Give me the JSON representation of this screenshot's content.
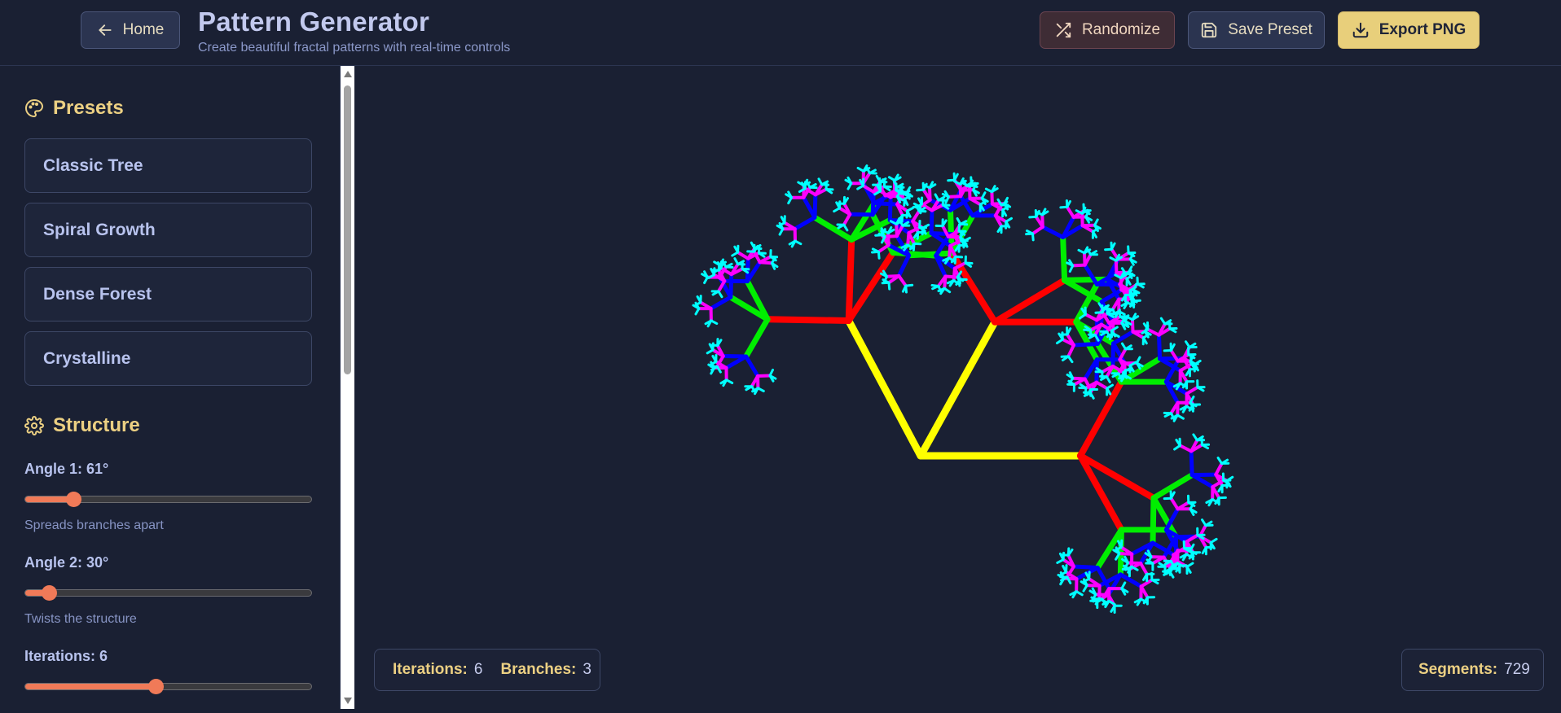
{
  "header": {
    "home_label": "Home",
    "title": "Pattern Generator",
    "subtitle": "Create beautiful fractal patterns with real-time controls",
    "randomize_label": "Randomize",
    "save_label": "Save Preset",
    "export_label": "Export PNG"
  },
  "sidebar": {
    "presets_title": "Presets",
    "presets": [
      "Classic Tree",
      "Spiral Growth",
      "Dense Forest",
      "Crystalline"
    ],
    "structure_title": "Structure",
    "sliders": [
      {
        "label": "Angle 1: 61°",
        "hint": "Spreads branches apart",
        "value": 61,
        "min": 0,
        "max": 360
      },
      {
        "label": "Angle 2: 30°",
        "hint": "Twists the structure",
        "value": 30,
        "min": 0,
        "max": 360
      },
      {
        "label": "Iterations: 6",
        "hint": "",
        "value": 6,
        "min": 1,
        "max": 12
      }
    ]
  },
  "stats": {
    "iterations_key": "Iterations:",
    "iterations_value": "6",
    "branches_key": "Branches:",
    "branches_value": "3",
    "segments_key": "Segments:",
    "segments_value": "729"
  },
  "fractal": {
    "colors": [
      "#ffff00",
      "#ff0000",
      "#00ee00",
      "#0000ff",
      "#ff00ff",
      "#00ffff"
    ],
    "angles_deg": [
      61,
      30,
      -61
    ]
  }
}
